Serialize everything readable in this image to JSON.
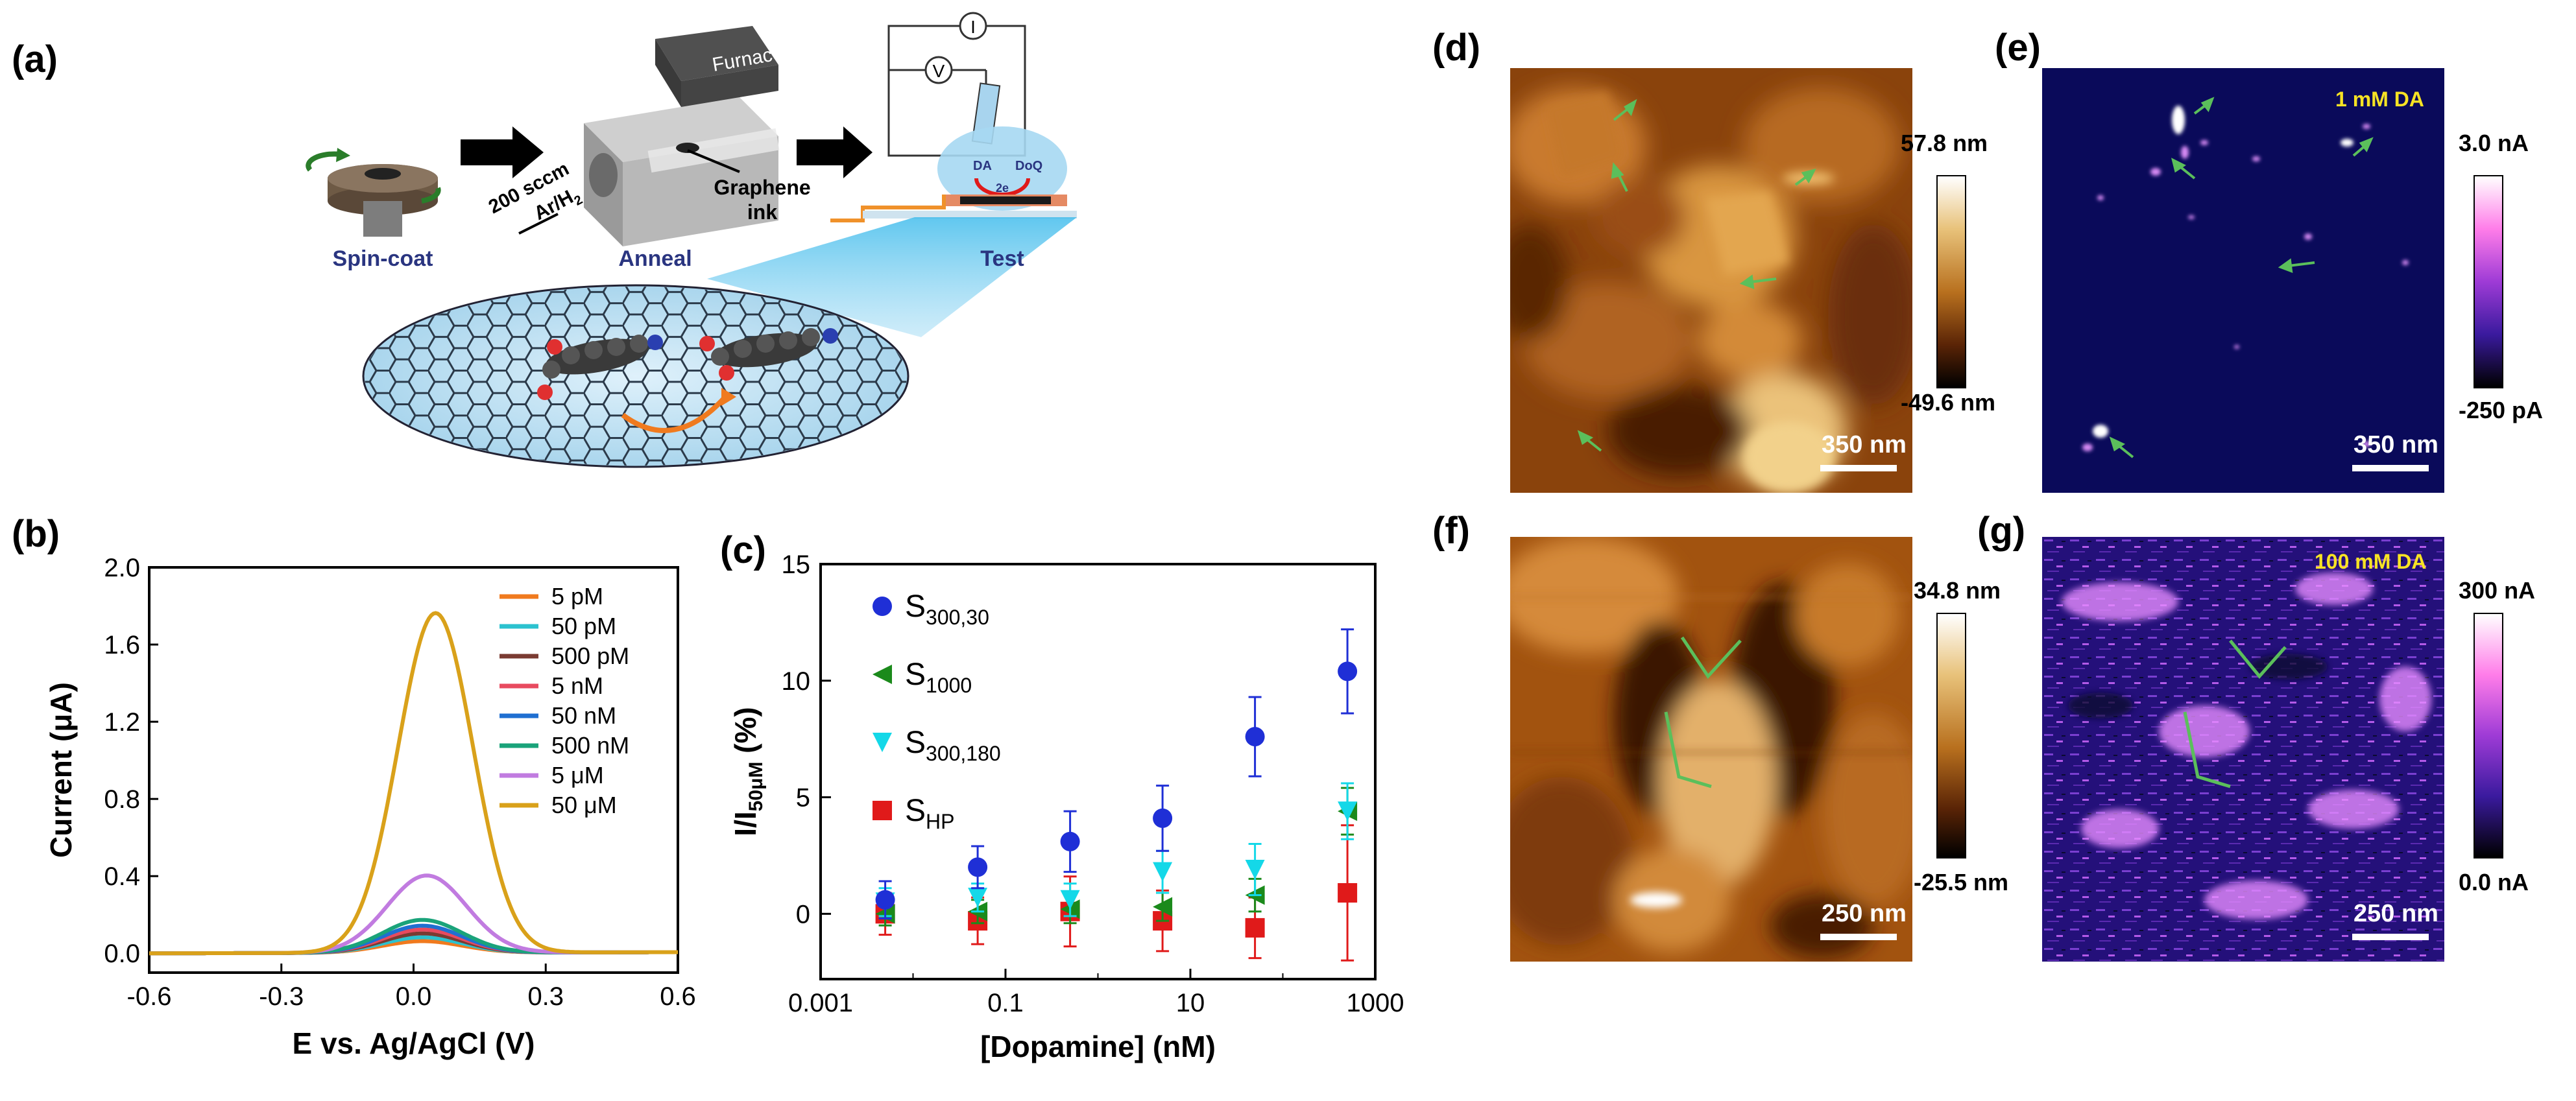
{
  "panels": {
    "a": {
      "label": "(a)",
      "steps": [
        "Spin-coat",
        "Anneal",
        "Test"
      ],
      "furnace": "Furnace",
      "gas_flow_1": "200 sccm",
      "gas_flow_2": "Ar/H",
      "gas_sub": "2",
      "graphene_ink_1": "Graphene",
      "graphene_ink_2": "ink",
      "meter_i": "I",
      "meter_v": "V",
      "cell_da": "DA",
      "cell_doq": "DoQ",
      "cell_e": "2e"
    },
    "b": {
      "label": "(b)"
    },
    "c": {
      "label": "(c)"
    },
    "d": {
      "label": "(d)",
      "scale": "350 nm",
      "cb_max": "57.8 nm",
      "cb_min": "-49.6 nm"
    },
    "e": {
      "label": "(e)",
      "scale": "350 nm",
      "tag": "1 mM DA",
      "cb_max": "3.0 nA",
      "cb_min": "-250 pA"
    },
    "f": {
      "label": "(f)",
      "scale": "250 nm",
      "cb_max": "34.8 nm",
      "cb_min": "-25.5 nm"
    },
    "g": {
      "label": "(g)",
      "scale": "250 nm",
      "tag": "100 mM DA",
      "cb_max": "300 nA",
      "cb_min": "0.0 nA"
    }
  },
  "colors": {
    "afm_dark": "#2a0f02",
    "afm_mid": "#a2530f",
    "afm_light": "#e6b566",
    "scm_bg": "#0a0a5a",
    "scm_spot": "#e58bff",
    "arrow_green": "#5bbf5b",
    "text_yellow": "#f7e324",
    "step_blue": "#2a3580"
  },
  "chart_data": [
    {
      "type": "line",
      "panel": "b",
      "xlabel": "E vs. Ag/AgCl (V)",
      "ylabel": "Current (μA)",
      "xlim": [
        -0.6,
        0.6
      ],
      "ylim": [
        -0.1,
        2.0
      ],
      "x_ticks": [
        "-0.6",
        "-0.3",
        "0.0",
        "0.3",
        "0.6"
      ],
      "y_ticks": [
        "0.0",
        "0.4",
        "0.8",
        "1.2",
        "1.6",
        "2.0"
      ],
      "legend_position": "right",
      "series": [
        {
          "name": "5 pM",
          "color": "#f07a1e",
          "peak_x": 0.02,
          "peak_y": 0.06
        },
        {
          "name": "50 pM",
          "color": "#2cc2cf",
          "peak_x": 0.02,
          "peak_y": 0.08
        },
        {
          "name": "500 pM",
          "color": "#7a3b32",
          "peak_x": 0.02,
          "peak_y": 0.1
        },
        {
          "name": "5 nM",
          "color": "#e84a5f",
          "peak_x": 0.02,
          "peak_y": 0.12
        },
        {
          "name": "50 nM",
          "color": "#1f6fd1",
          "peak_x": 0.02,
          "peak_y": 0.14
        },
        {
          "name": "500 nM",
          "color": "#1aa37a",
          "peak_x": 0.02,
          "peak_y": 0.17
        },
        {
          "name": "5 μM",
          "color": "#c17be0",
          "peak_x": 0.03,
          "peak_y": 0.4
        },
        {
          "name": "50 μM",
          "color": "#d9a11a",
          "peak_x": 0.05,
          "peak_y": 1.76
        }
      ]
    },
    {
      "type": "scatter",
      "panel": "c",
      "xlabel": "[Dopamine] (nM)",
      "ylabel": "I/I",
      "ylabel_sub": "50μM",
      "ylabel_unit": " (%)",
      "x_scale": "log",
      "xlim": [
        0.001,
        1000
      ],
      "ylim": [
        -2.8,
        15
      ],
      "x_ticks": [
        "0.001",
        "0.1",
        "10",
        "1000"
      ],
      "y_ticks": [
        "0",
        "5",
        "10",
        "15"
      ],
      "legend_position": "top-left",
      "x": [
        0.005,
        0.05,
        0.5,
        5,
        50,
        500
      ],
      "series": [
        {
          "name": "S",
          "sub": "300,30",
          "color": "#1f2fd6",
          "marker": "circle",
          "values": [
            0.6,
            2.0,
            3.1,
            4.1,
            7.6,
            10.4
          ],
          "err": [
            0.8,
            0.9,
            1.3,
            1.4,
            1.7,
            1.8
          ]
        },
        {
          "name": "S",
          "sub": "1000",
          "color": "#1b8a1b",
          "marker": "triangle-left",
          "values": [
            0.0,
            0.1,
            0.2,
            0.3,
            0.8,
            4.4
          ],
          "err": [
            0.5,
            0.5,
            0.6,
            0.6,
            0.7,
            1.0
          ]
        },
        {
          "name": "S",
          "sub": "300,180",
          "color": "#14d8e8",
          "marker": "triangle-down",
          "values": [
            0.5,
            0.7,
            0.6,
            1.8,
            1.9,
            4.4
          ],
          "err": [
            0.6,
            0.6,
            0.7,
            0.9,
            1.1,
            1.2
          ]
        },
        {
          "name": "S",
          "sub": "HP",
          "color": "#e01a1a",
          "marker": "square",
          "values": [
            0.0,
            -0.3,
            0.1,
            -0.3,
            -0.6,
            0.9
          ],
          "err": [
            0.9,
            1.0,
            1.5,
            1.3,
            1.3,
            2.9
          ]
        }
      ]
    }
  ]
}
